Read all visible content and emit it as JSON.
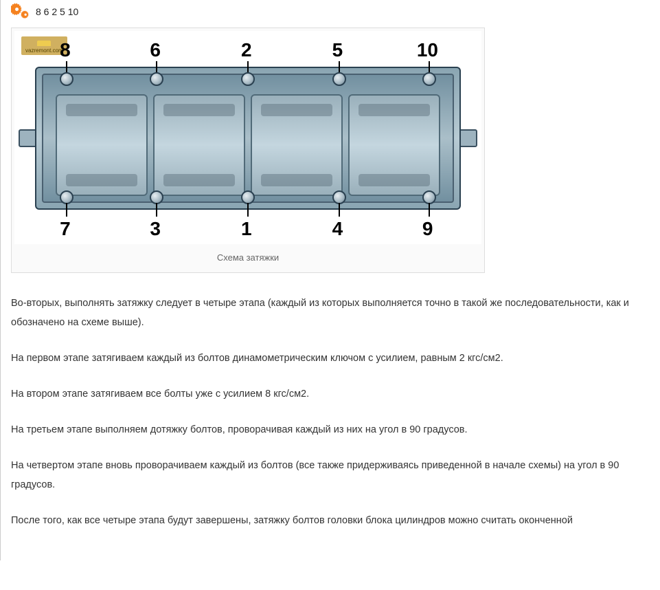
{
  "header": {
    "numbers": "8 6 2 5 10"
  },
  "figure": {
    "watermark_text": "vazremont.com",
    "caption": "Схема затяжки",
    "top_labels": [
      "8",
      "6",
      "2",
      "5",
      "10"
    ],
    "bottom_labels": [
      "7",
      "3",
      "1",
      "4",
      "9"
    ],
    "bolt_positions_pct": [
      11.2,
      30.5,
      50,
      69.5,
      88.8
    ],
    "colors": {
      "block_outline": "#2a4050",
      "block_fill_top": "#8aa5b2",
      "block_fill_mid": "#b8cbd4",
      "label_color": "#000000",
      "background": "#ffffff"
    }
  },
  "paragraphs": [
    "Во-вторых, выполнять затяжку следует в четыре этапа (каждый из которых выполняется точно в такой же последовательности, как и обозначено на схеме выше).",
    "На первом этапе затягиваем каждый из болтов динамометрическим ключом с усилием, равным 2 кгс/см2.",
    "На втором этапе затягиваем все болты уже с усилием 8 кгс/см2.",
    "На третьем этапе выполняем дотяжку болтов, проворачивая каждый из них на угол в 90 градусов.",
    "На четвертом этапе вновь проворачиваем каждый из болтов (все также придерживаясь приведенной в начале схемы) на угол в 90 градусов.",
    "После того, как все четыре этапа будут завершены, затяжку болтов головки блока цилиндров можно считать оконченной"
  ]
}
